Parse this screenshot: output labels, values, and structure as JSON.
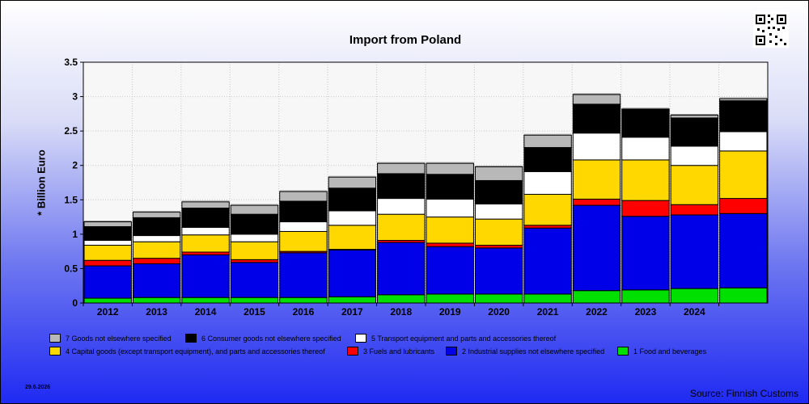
{
  "chart_data": {
    "type": "bar",
    "stacked": true,
    "title": "Import from Poland",
    "ylabel": "* Billion Euro",
    "xlabel": "",
    "ylim": [
      0,
      3.5
    ],
    "yticks": [
      "0",
      "0.5",
      "1",
      "1.5",
      "2",
      "2.5",
      "3",
      "3.5"
    ],
    "grid": true,
    "legend_position": "bottom",
    "categories": [
      "2012",
      "2013",
      "2014",
      "2015",
      "2016",
      "2017",
      "2018",
      "2019",
      "2020",
      "2021",
      "2022",
      "2023",
      "2024",
      ""
    ],
    "series": [
      {
        "name": "1 Food and beverages",
        "color": "#00e000",
        "values": [
          0.07,
          0.08,
          0.08,
          0.08,
          0.08,
          0.09,
          0.12,
          0.13,
          0.13,
          0.13,
          0.18,
          0.19,
          0.21,
          0.22
        ]
      },
      {
        "name": "2 Industrial supplies not elsewhere specified",
        "color": "#0000e8",
        "values": [
          0.47,
          0.49,
          0.62,
          0.51,
          0.65,
          0.68,
          0.76,
          0.69,
          0.67,
          0.96,
          1.24,
          1.07,
          1.07,
          1.08
        ]
      },
      {
        "name": "3 Fuels and lubricants",
        "color": "#ff0000",
        "values": [
          0.08,
          0.08,
          0.04,
          0.04,
          0.02,
          0.01,
          0.03,
          0.05,
          0.04,
          0.04,
          0.09,
          0.23,
          0.15,
          0.22
        ]
      },
      {
        "name": "4 Capital goods (except transport equipment), and parts and accessories thereof",
        "color": "#ffd800",
        "values": [
          0.22,
          0.24,
          0.25,
          0.26,
          0.29,
          0.35,
          0.38,
          0.38,
          0.38,
          0.45,
          0.57,
          0.59,
          0.57,
          0.69
        ]
      },
      {
        "name": "5  Transport equipment and parts and accessories thereof",
        "color": "#ffffff",
        "values": [
          0.07,
          0.09,
          0.11,
          0.11,
          0.14,
          0.21,
          0.23,
          0.26,
          0.22,
          0.33,
          0.39,
          0.33,
          0.28,
          0.28
        ]
      },
      {
        "name": "6 Consumer goods not elsewhere specified",
        "color": "#000000",
        "values": [
          0.2,
          0.26,
          0.28,
          0.29,
          0.3,
          0.33,
          0.36,
          0.36,
          0.34,
          0.35,
          0.42,
          0.4,
          0.41,
          0.45
        ]
      },
      {
        "name": "7 Goods not elsewhere specified",
        "color": "#b8b8b8",
        "values": [
          0.07,
          0.08,
          0.09,
          0.13,
          0.14,
          0.16,
          0.15,
          0.16,
          0.2,
          0.18,
          0.14,
          0.01,
          0.04,
          0.03
        ]
      }
    ]
  },
  "footer": {
    "date": "29.6.2026",
    "source": "Source: Finnish Customs"
  }
}
